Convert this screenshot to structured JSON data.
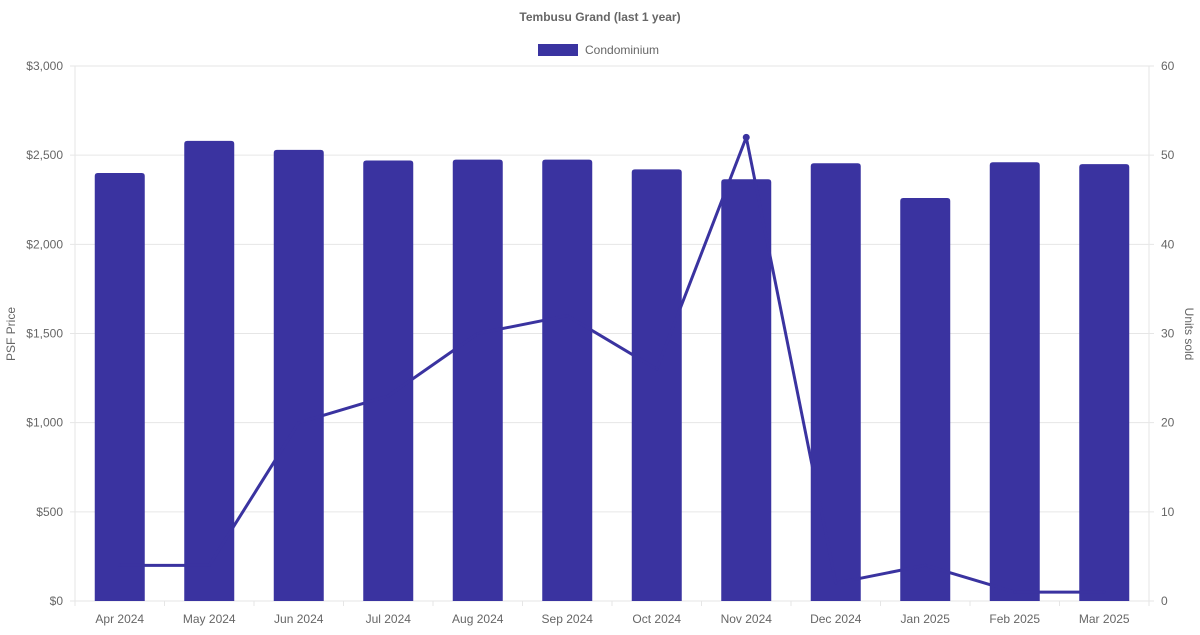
{
  "chart_data": {
    "type": "bar",
    "title": "Tembusu Grand (last 1 year)",
    "legend": {
      "position": "top",
      "entries": [
        {
          "label": "Condominium",
          "color": "#3a33a0"
        }
      ]
    },
    "categories": [
      "Apr 2024",
      "May 2024",
      "Jun 2024",
      "Jul 2024",
      "Aug 2024",
      "Sep 2024",
      "Oct 2024",
      "Nov 2024",
      "Dec 2024",
      "Jan 2025",
      "Feb 2025",
      "Mar 2025"
    ],
    "series": [
      {
        "name": "Condominium",
        "type": "bar",
        "axis": "left",
        "values": [
          2400,
          2580,
          2530,
          2470,
          2475,
          2475,
          2420,
          2365,
          2455,
          2260,
          2460,
          2450
        ]
      },
      {
        "type": "line",
        "axis": "right",
        "values": [
          4,
          4,
          20,
          23,
          30,
          32,
          26,
          52,
          2,
          4,
          1,
          1
        ]
      }
    ],
    "y_left": {
      "label": "PSF Price",
      "min": 0,
      "max": 3000,
      "ticks": [
        "$0",
        "$500",
        "$1,000",
        "$1,500",
        "$2,000",
        "$2,500",
        "$3,000"
      ]
    },
    "y_right": {
      "label": "Units sold",
      "min": 0,
      "max": 60,
      "ticks": [
        "0",
        "10",
        "20",
        "30",
        "40",
        "50",
        "60"
      ]
    },
    "grid": true,
    "colors": {
      "bar": "#3a33a0",
      "line": "#3a33a0",
      "grid": "#e6e6e6",
      "text": "#666666"
    }
  }
}
